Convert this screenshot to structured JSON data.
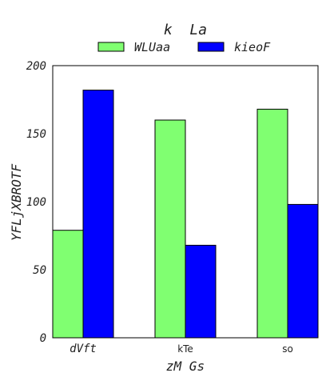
{
  "chart_data": {
    "type": "bar",
    "title": "k  La",
    "xlabel": "zM Gs",
    "ylabel": "YFLjXBROTF",
    "categories": [
      "dVft",
      "kTe",
      "so"
    ],
    "series": [
      {
        "name": "WLUaa",
        "color": "#80ff71",
        "values": [
          79,
          160,
          168
        ]
      },
      {
        "name": "kieoF",
        "color": "#0000ff",
        "values": [
          182,
          68,
          98
        ]
      }
    ],
    "ylim": [
      0,
      200
    ],
    "yticks": [
      0,
      50,
      100,
      150,
      200
    ],
    "grid": false,
    "legend_position": "top-center"
  }
}
